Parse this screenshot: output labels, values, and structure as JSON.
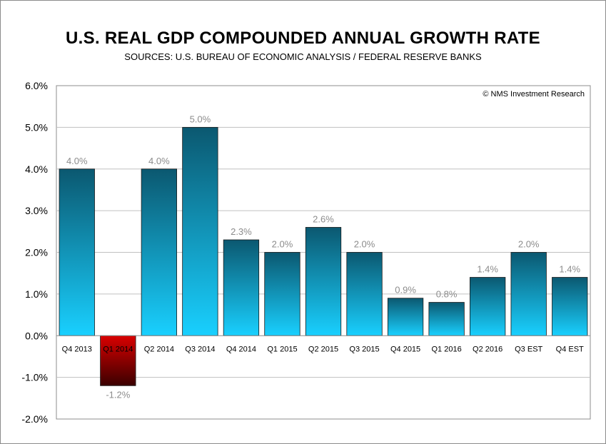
{
  "chart_data": {
    "type": "bar",
    "title": "U.S. REAL GDP COMPOUNDED ANNUAL GROWTH RATE",
    "subtitle": "SOURCES: U.S. BUREAU OF ECONOMIC ANALYSIS / FEDERAL RESERVE BANKS",
    "credit": "© NMS Investment Research",
    "categories": [
      "Q4 2013",
      "Q1 2014",
      "Q2 2014",
      "Q3 2014",
      "Q4 2014",
      "Q1 2015",
      "Q2 2015",
      "Q3 2015",
      "Q4 2015",
      "Q1 2016",
      "Q2 2016",
      "Q3 EST",
      "Q4 EST"
    ],
    "values": [
      4.0,
      -1.2,
      4.0,
      5.0,
      2.3,
      2.0,
      2.6,
      2.0,
      0.9,
      0.8,
      1.4,
      2.0,
      1.4
    ],
    "value_labels": [
      "4.0%",
      "-1.2%",
      "4.0%",
      "5.0%",
      "2.3%",
      "2.0%",
      "2.6%",
      "2.0%",
      "0.9%",
      "0.8%",
      "1.4%",
      "2.0%",
      "1.4%"
    ],
    "ylim": [
      -2.0,
      6.0
    ],
    "yticks": [
      6.0,
      5.0,
      4.0,
      3.0,
      2.0,
      1.0,
      0.0,
      -1.0,
      -2.0
    ],
    "ytick_labels": [
      "6.0%",
      "5.0%",
      "4.0%",
      "3.0%",
      "2.0%",
      "1.0%",
      "0.0%",
      "-1.0%",
      "-2.0%"
    ],
    "grid": true,
    "colors": {
      "positive_top": "#0b5870",
      "positive_bottom": "#19d0ff",
      "negative_top": "#d90000",
      "negative_bottom": "#3a0000",
      "gridline": "#c0c0c0",
      "value_label": "#8c8c8c"
    }
  }
}
